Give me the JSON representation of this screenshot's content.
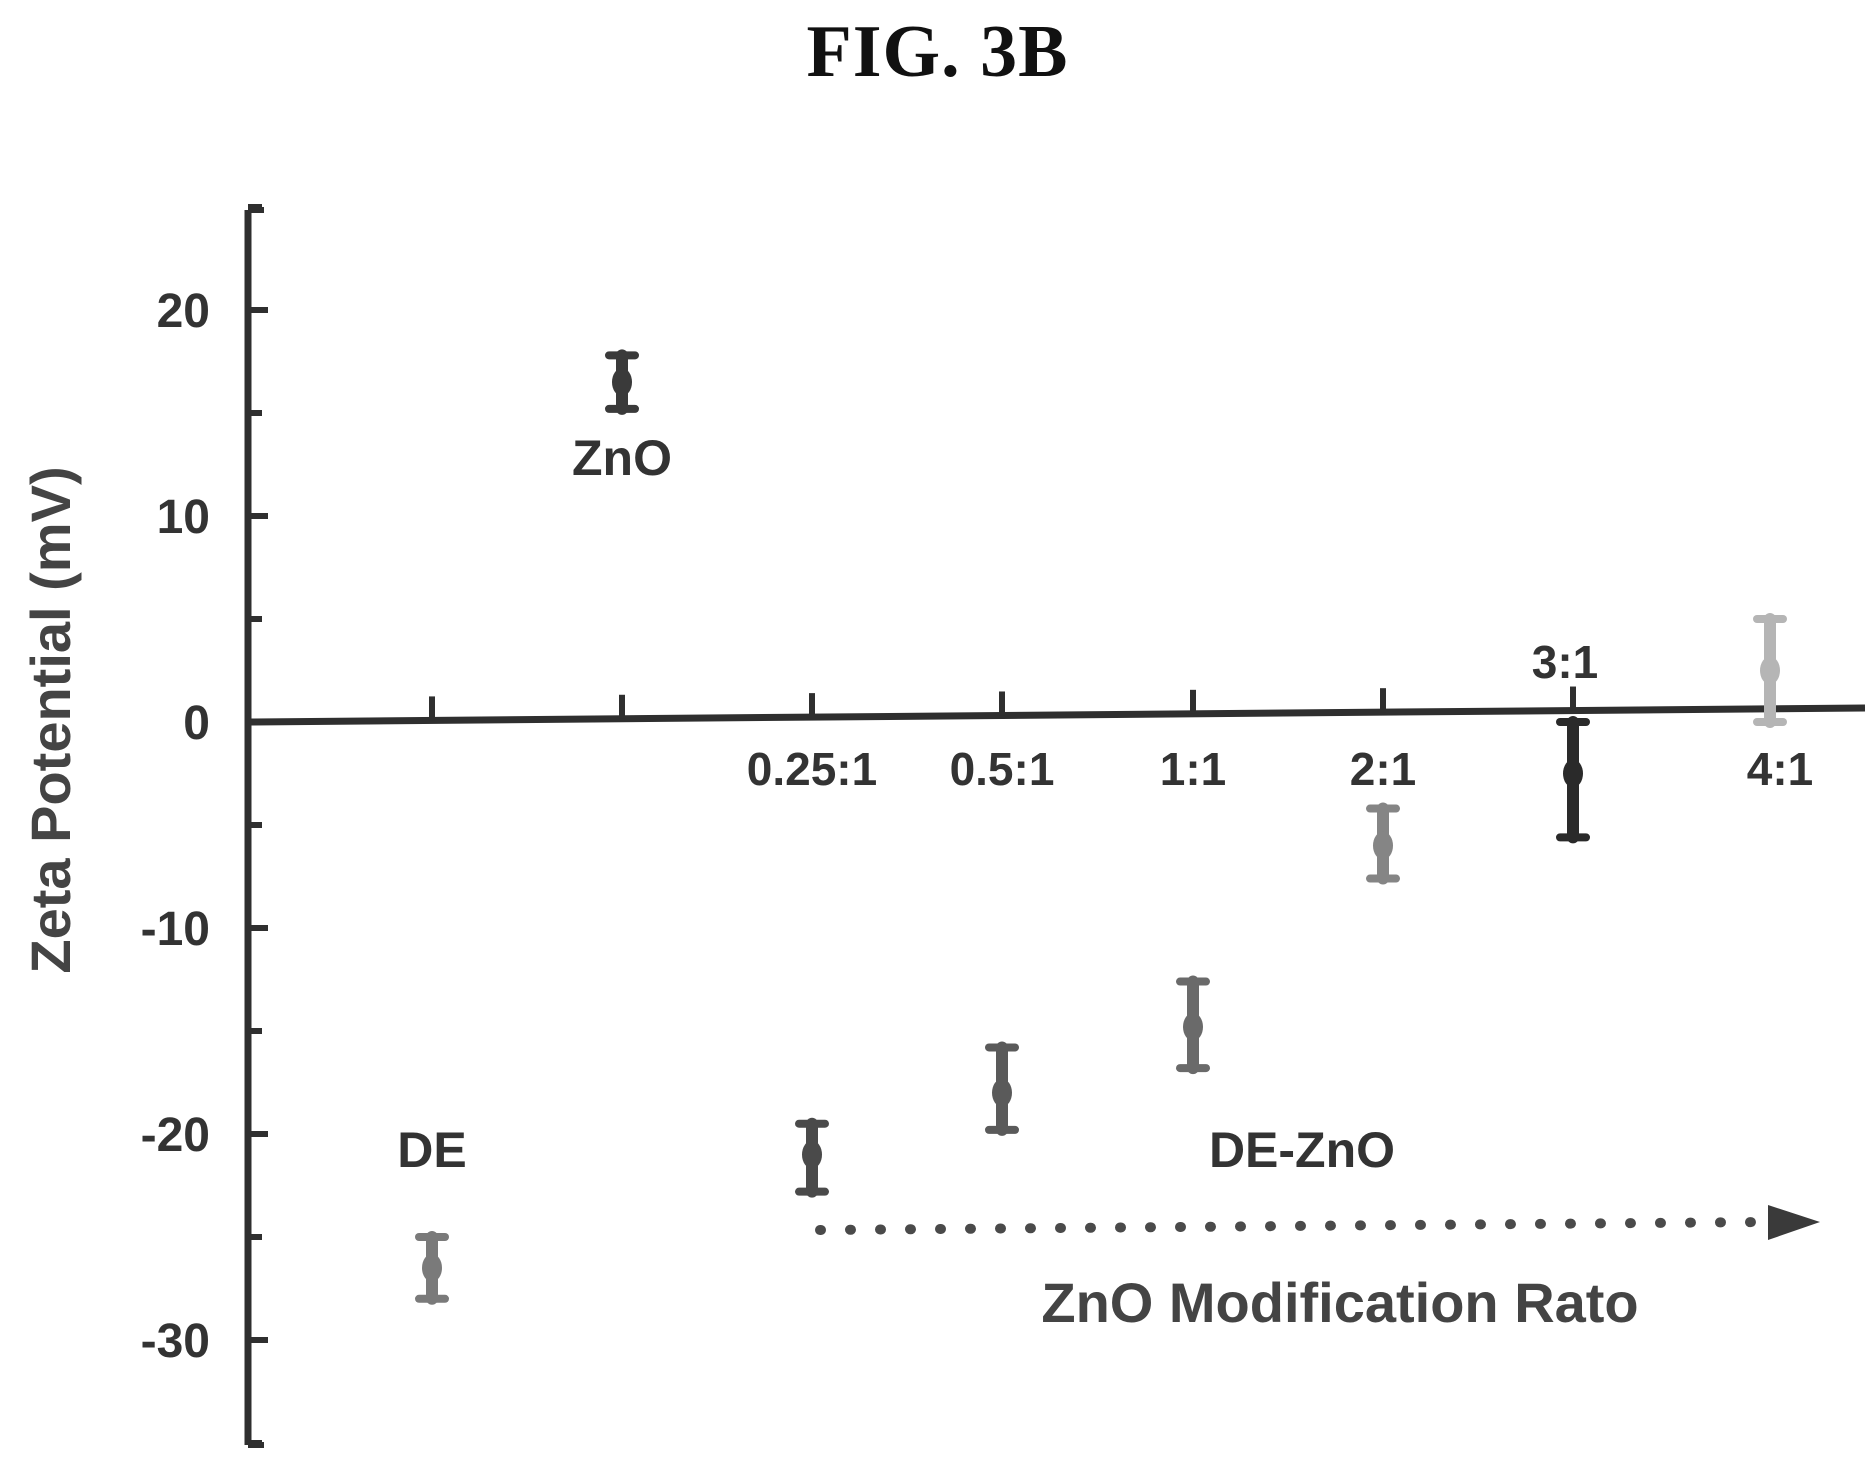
{
  "figure_title": "FIG. 3B",
  "chart_data": {
    "type": "scatter",
    "title": "",
    "ylabel": "Zeta Potential (mV)",
    "xlabel": "ZnO Modification Rato",
    "ylim": [
      -35,
      25
    ],
    "yticks": [
      20,
      10,
      0,
      -10,
      -20,
      -30
    ],
    "grid": false,
    "points": [
      {
        "label": "DE",
        "value": -26.5,
        "err_low": -28.0,
        "err_high": -25.0,
        "color": "#7a7a7a"
      },
      {
        "label": "ZnO",
        "value": 16.5,
        "err_low": 15.2,
        "err_high": 17.8,
        "color": "#3a3a3a"
      },
      {
        "label": "0.25:1",
        "value": -21.0,
        "err_low": -22.8,
        "err_high": -19.5,
        "color": "#4a4a4a"
      },
      {
        "label": "0.5:1",
        "value": -18.0,
        "err_low": -19.8,
        "err_high": -15.8,
        "color": "#5a5a5a"
      },
      {
        "label": "1:1",
        "value": -14.8,
        "err_low": -16.8,
        "err_high": -12.6,
        "color": "#6a6a6a"
      },
      {
        "label": "2:1",
        "value": -6.0,
        "err_low": -7.6,
        "err_high": -4.2,
        "color": "#858585"
      },
      {
        "label": "3:1",
        "value": -2.5,
        "err_low": -5.6,
        "err_high": 0.0,
        "color": "#2a2a2a"
      },
      {
        "label": "4:1",
        "value": 2.5,
        "err_low": 0.0,
        "err_high": 5.0,
        "color": "#b5b5b5"
      }
    ],
    "annotations": {
      "zno_label": "ZnO",
      "de_label": "DE",
      "de_zno_label": "DE-ZnO"
    }
  }
}
